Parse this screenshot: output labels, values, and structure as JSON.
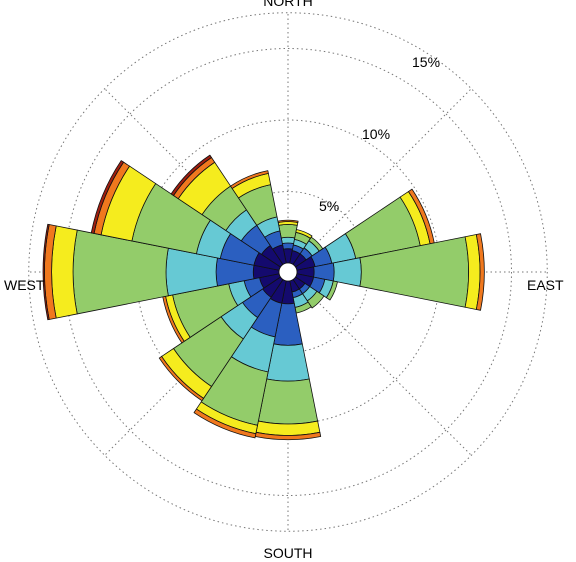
{
  "chart_data": {
    "type": "wind-rose",
    "direction_labels": {
      "north": "NORTH",
      "east": "EAST",
      "south": "SOUTH",
      "west": "WEST"
    },
    "radial_ticks": [
      {
        "value": 5,
        "label": "5%"
      },
      {
        "value": 10,
        "label": "10%"
      },
      {
        "value": 15,
        "label": "15%"
      }
    ],
    "radial_max": 17.5,
    "sectors": 16,
    "band_colors": [
      "#140a6e",
      "#2b5fc0",
      "#66c9d4",
      "#93cc6a",
      "#f5ec1e",
      "#f0781e",
      "#a01e10"
    ],
    "bins": [
      {
        "direction_deg": 0,
        "cumulative": [
          1.0,
          1.4,
          1.8,
          2.7,
          2.9,
          3.0
        ]
      },
      {
        "direction_deg": 22.5,
        "cumulative": [
          0.9,
          1.3,
          1.7,
          2.2,
          2.4
        ]
      },
      {
        "direction_deg": 45,
        "cumulative": [
          0.9,
          1.4,
          2.0,
          2.3
        ]
      },
      {
        "direction_deg": 67.5,
        "cumulative": [
          1.3,
          2.5,
          4.2,
          8.8,
          9.5,
          9.8
        ]
      },
      {
        "direction_deg": 90,
        "cumulative": [
          1.2,
          2.6,
          4.5,
          12.0,
          12.8,
          13.1
        ]
      },
      {
        "direction_deg": 112.5,
        "cumulative": [
          1.2,
          2.0,
          2.6,
          2.9
        ]
      },
      {
        "direction_deg": 135,
        "cumulative": [
          0.8,
          1.2,
          1.8,
          2.4
        ]
      },
      {
        "direction_deg": 157.5,
        "cumulative": [
          0.8,
          1.2,
          1.9,
          2.3
        ]
      },
      {
        "direction_deg": 180,
        "cumulative": [
          1.6,
          4.5,
          7.0,
          10.0,
          10.8,
          11.1
        ]
      },
      {
        "direction_deg": 202.5,
        "cumulative": [
          1.6,
          4.0,
          6.5,
          10.3,
          10.9,
          11.2
        ]
      },
      {
        "direction_deg": 225,
        "cumulative": [
          1.5,
          3.2,
          5.0,
          9.0,
          10.0,
          10.2
        ]
      },
      {
        "direction_deg": 247.5,
        "cumulative": [
          1.4,
          2.5,
          3.6,
          7.6,
          8.1,
          8.3
        ]
      },
      {
        "direction_deg": 270,
        "cumulative": [
          1.8,
          4.4,
          7.9,
          14.4,
          15.9,
          16.4,
          16.5
        ]
      },
      {
        "direction_deg": 292.5,
        "cumulative": [
          1.8,
          4.2,
          5.9,
          10.5,
          12.7,
          13.2,
          13.4
        ]
      },
      {
        "direction_deg": 315,
        "cumulative": [
          1.6,
          3.3,
          4.6,
          6.6,
          8.6,
          9.0,
          9.2
        ]
      },
      {
        "direction_deg": 337.5,
        "cumulative": [
          1.3,
          2.3,
          3.3,
          5.6,
          6.4,
          6.6
        ]
      }
    ]
  }
}
